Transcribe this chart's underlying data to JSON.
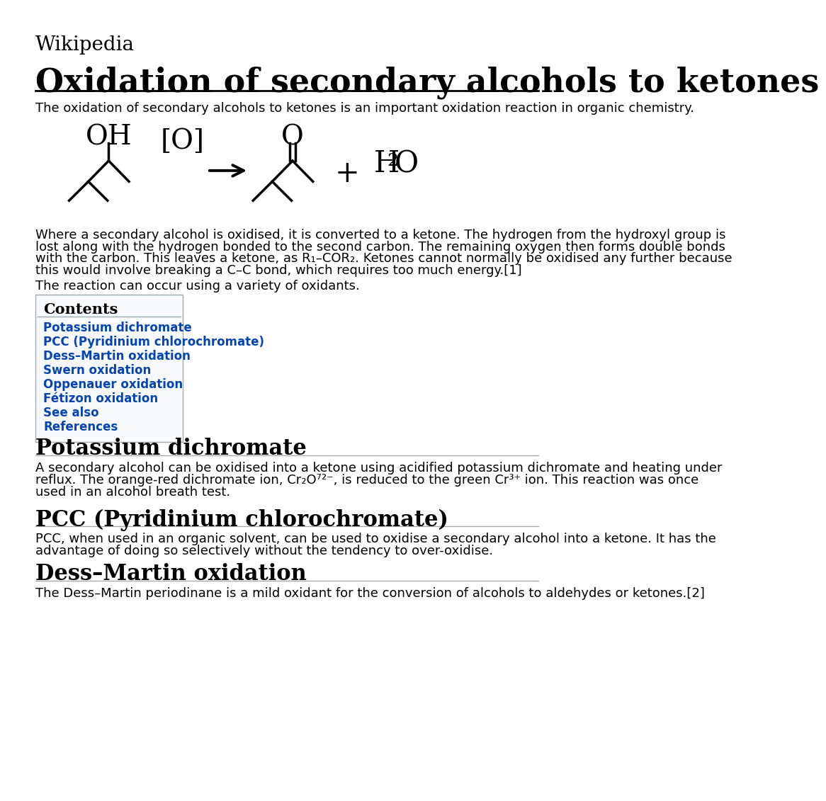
{
  "bg_color": "#ffffff",
  "wikipedia_label": "Wikipedia",
  "title": "Oxidation of secondary alcohols to ketones",
  "contents_title": "Contents",
  "contents_items": [
    "Potassium dichromate",
    "PCC (Pyridinium chlorochromate)",
    "Dess–Martin oxidation",
    "Swern oxidation",
    "Oppenauer oxidation",
    "Fétizon oxidation",
    "See also",
    "References"
  ],
  "section1_title": "Potassium dichromate",
  "section2_title": "PCC (Pyridinium chlorochromate)",
  "section3_title": "Dess–Martin oxidation",
  "intro_line": "The oxidation of secondary alcohols to ketones is an important oxidation reaction in organic chemistry.",
  "p1_lines": [
    "Where a secondary alcohol is oxidised, it is converted to a ketone. The hydrogen from the hydroxyl group is",
    "lost along with the hydrogen bonded to the second carbon. The remaining oxygen then forms double bonds",
    "with the carbon. This leaves a ketone, as R₁–COR₂. Ketones cannot normally be oxidised any further because",
    "this would involve breaking a C–C bond, which requires too much energy.[1]"
  ],
  "reaction_note": "The reaction can occur using a variety of oxidants.",
  "s1_lines": [
    "A secondary alcohol can be oxidised into a ketone using acidified potassium dichromate and heating under",
    "reflux. The orange-red dichromate ion, Cr₂O⁷²⁻, is reduced to the green Cr³⁺ ion. This reaction was once",
    "used in an alcohol breath test."
  ],
  "s2_lines": [
    "PCC, when used in an organic solvent, can be used to oxidise a secondary alcohol into a ketone. It has the",
    "advantage of doing so selectively without the tendency to over-oxidise."
  ],
  "s3_lines": [
    "The Dess–Martin periodinane is a mild oxidant for the conversion of alcohols to aldehydes or ketones.[2]"
  ]
}
